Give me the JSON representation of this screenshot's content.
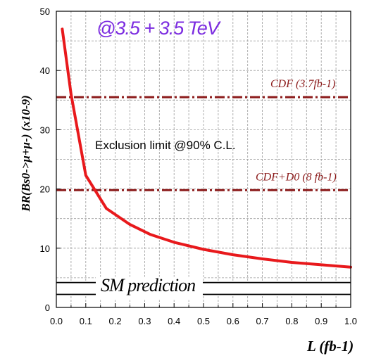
{
  "chart_data": {
    "type": "line",
    "title": "@3.5 + 3.5 TeV",
    "xlabel": "L (fb-1)",
    "ylabel": "BR(Bs0->μ+μ-) (x10-9)",
    "xlim": [
      0.0,
      1.0
    ],
    "ylim": [
      0,
      50
    ],
    "x_ticks": [
      "0.0",
      "0.1",
      "0.2",
      "0.3",
      "0.4",
      "0.5",
      "0.6",
      "0.7",
      "0.8",
      "0.9",
      "1.0"
    ],
    "y_ticks": [
      "0",
      "10",
      "20",
      "30",
      "40",
      "50"
    ],
    "grid": true,
    "series": [
      {
        "color": "#e8191c",
        "x": [
          0.02,
          0.05,
          0.1,
          0.17,
          0.25,
          0.32,
          0.4,
          0.5,
          0.6,
          0.7,
          0.8,
          0.9,
          1.0
        ],
        "y": [
          47.0,
          36.0,
          22.3,
          16.7,
          14.0,
          12.3,
          11.0,
          9.8,
          8.9,
          8.2,
          7.6,
          7.2,
          6.8
        ]
      }
    ],
    "reference_lines": [
      {
        "label": "CDF (3.7fb-1)",
        "y": 35.5,
        "color": "#8b1a1a",
        "style": "dash-dot"
      },
      {
        "label": "CDF+D0 (8 fb-1)",
        "y": 19.8,
        "color": "#8b1a1a",
        "style": "dash-dot"
      }
    ],
    "sm_band": {
      "label": "SM prediction",
      "y_low": 2.2,
      "y_high": 4.2
    },
    "annotation": "Exclusion limit @90% C.L."
  }
}
